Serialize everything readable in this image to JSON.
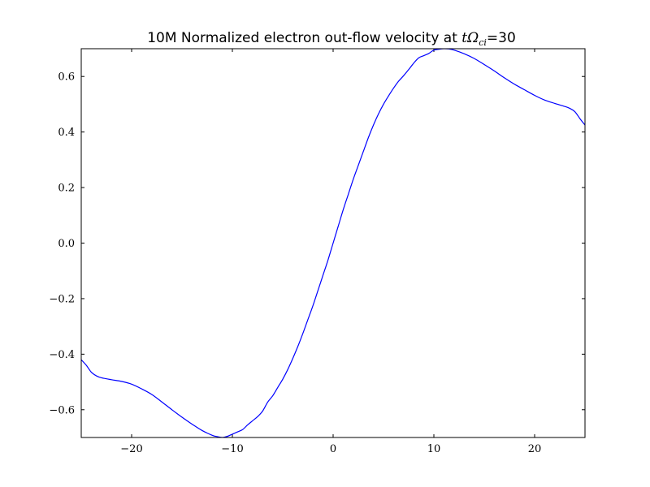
{
  "chart_data": {
    "type": "line",
    "title": {
      "prefix": "10M Normalized electron out-flow velocity at ",
      "math_var": "tΩ",
      "math_sub": "ci",
      "suffix": "=30"
    },
    "xlabel": "",
    "ylabel": "",
    "xlim": [
      -25,
      25
    ],
    "ylim": [
      -0.7,
      0.7
    ],
    "x_ticks": [
      -20,
      -10,
      0,
      10,
      20
    ],
    "x_tick_labels": [
      "−20",
      "−10",
      "0",
      "10",
      "20"
    ],
    "y_ticks": [
      -0.6,
      -0.4,
      -0.2,
      0.0,
      0.2,
      0.4,
      0.6
    ],
    "y_tick_labels": [
      "−0.6",
      "−0.4",
      "−0.2",
      "0.0",
      "0.2",
      "0.4",
      "0.6"
    ],
    "grid": false,
    "legend": "none",
    "series": [
      {
        "color": "#0000ff",
        "x": [
          -25,
          -24.5,
          -24,
          -23.5,
          -23,
          -22,
          -21,
          -20,
          -19,
          -18,
          -17,
          -16,
          -15,
          -14,
          -13,
          -12,
          -11.5,
          -11,
          -10.5,
          -10,
          -9.5,
          -9,
          -8.5,
          -8,
          -7.5,
          -7,
          -6.5,
          -6,
          -5.5,
          -5,
          -4.5,
          -4,
          -3.5,
          -3,
          -2.5,
          -2,
          -1.5,
          -1,
          -0.5,
          0,
          0.5,
          1,
          1.5,
          2,
          2.5,
          3,
          3.5,
          4,
          4.5,
          5,
          5.5,
          6,
          6.5,
          7,
          7.5,
          8,
          8.5,
          9,
          9.5,
          10,
          10.5,
          11,
          11.5,
          12,
          13,
          14,
          15,
          16,
          17,
          18,
          19,
          20,
          21,
          22,
          23,
          23.5,
          24,
          24.5,
          25
        ],
        "y": [
          -0.42,
          -0.44,
          -0.465,
          -0.478,
          -0.485,
          -0.492,
          -0.498,
          -0.508,
          -0.525,
          -0.545,
          -0.572,
          -0.6,
          -0.627,
          -0.652,
          -0.675,
          -0.692,
          -0.697,
          -0.7,
          -0.696,
          -0.688,
          -0.68,
          -0.672,
          -0.655,
          -0.64,
          -0.625,
          -0.605,
          -0.573,
          -0.55,
          -0.52,
          -0.49,
          -0.455,
          -0.415,
          -0.372,
          -0.325,
          -0.275,
          -0.225,
          -0.17,
          -0.115,
          -0.06,
          0.0,
          0.06,
          0.12,
          0.175,
          0.23,
          0.28,
          0.33,
          0.38,
          0.425,
          0.465,
          0.5,
          0.53,
          0.558,
          0.583,
          0.603,
          0.625,
          0.648,
          0.667,
          0.675,
          0.683,
          0.695,
          0.698,
          0.7,
          0.699,
          0.695,
          0.682,
          0.665,
          0.643,
          0.62,
          0.595,
          0.572,
          0.552,
          0.532,
          0.515,
          0.503,
          0.492,
          0.485,
          0.473,
          0.448,
          0.425
        ]
      }
    ]
  }
}
